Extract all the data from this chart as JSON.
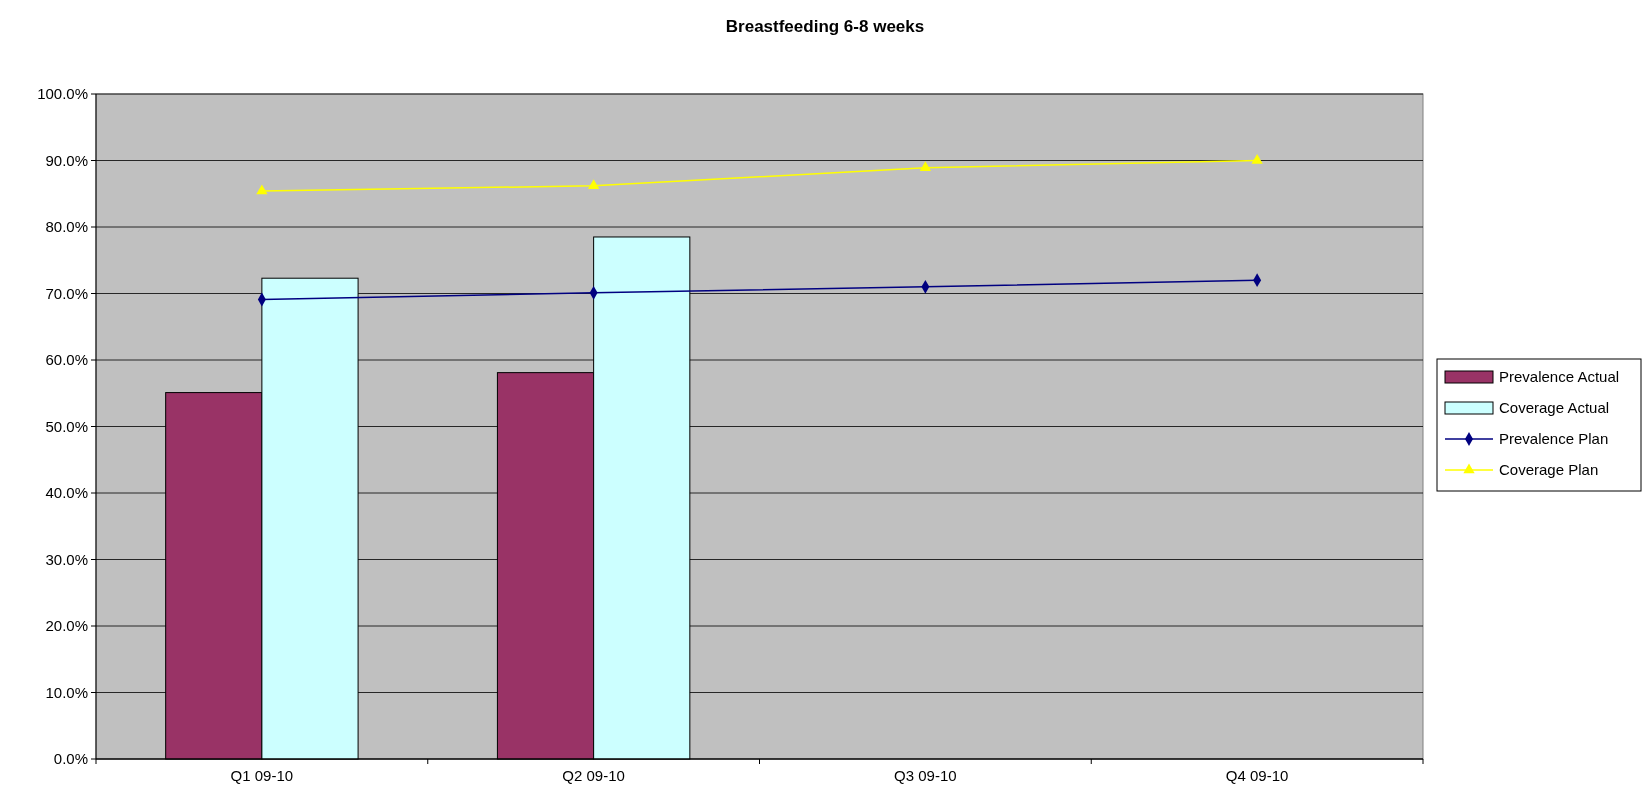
{
  "chart_data": {
    "type": "bar",
    "title": "Breastfeeding 6-8 weeks",
    "categories": [
      "Q1 09-10",
      "Q2 09-10",
      "Q3 09-10",
      "Q4 09-10"
    ],
    "series": [
      {
        "name": "Prevalence Actual",
        "color": "#993366",
        "values": [
          55.1,
          58.1,
          null,
          null
        ]
      },
      {
        "name": "Coverage Actual",
        "color": "#ccffff",
        "values": [
          72.3,
          78.5,
          null,
          null
        ]
      },
      {
        "name": "Prevalence Plan",
        "type": "line",
        "marker": "diamond",
        "color": "#000080",
        "values": [
          69.1,
          70.1,
          71.0,
          72.0
        ]
      },
      {
        "name": "Coverage Plan",
        "type": "line",
        "marker": "triangle",
        "color": "#ffff00",
        "values": [
          85.4,
          86.2,
          88.9,
          90.0
        ]
      }
    ],
    "ylim": [
      0,
      100
    ],
    "yticks": [
      {
        "value": 0,
        "label": "0.0%"
      },
      {
        "value": 10,
        "label": "10.0%"
      },
      {
        "value": 20,
        "label": "20.0%"
      },
      {
        "value": 30,
        "label": "30.0%"
      },
      {
        "value": 40,
        "label": "40.0%"
      },
      {
        "value": 50,
        "label": "50.0%"
      },
      {
        "value": 60,
        "label": "60.0%"
      },
      {
        "value": 70,
        "label": "70.0%"
      },
      {
        "value": 80,
        "label": "80.0%"
      },
      {
        "value": 90,
        "label": "90.0%"
      },
      {
        "value": 100,
        "label": "100.0%"
      }
    ],
    "grid": "y",
    "legend": "right"
  }
}
